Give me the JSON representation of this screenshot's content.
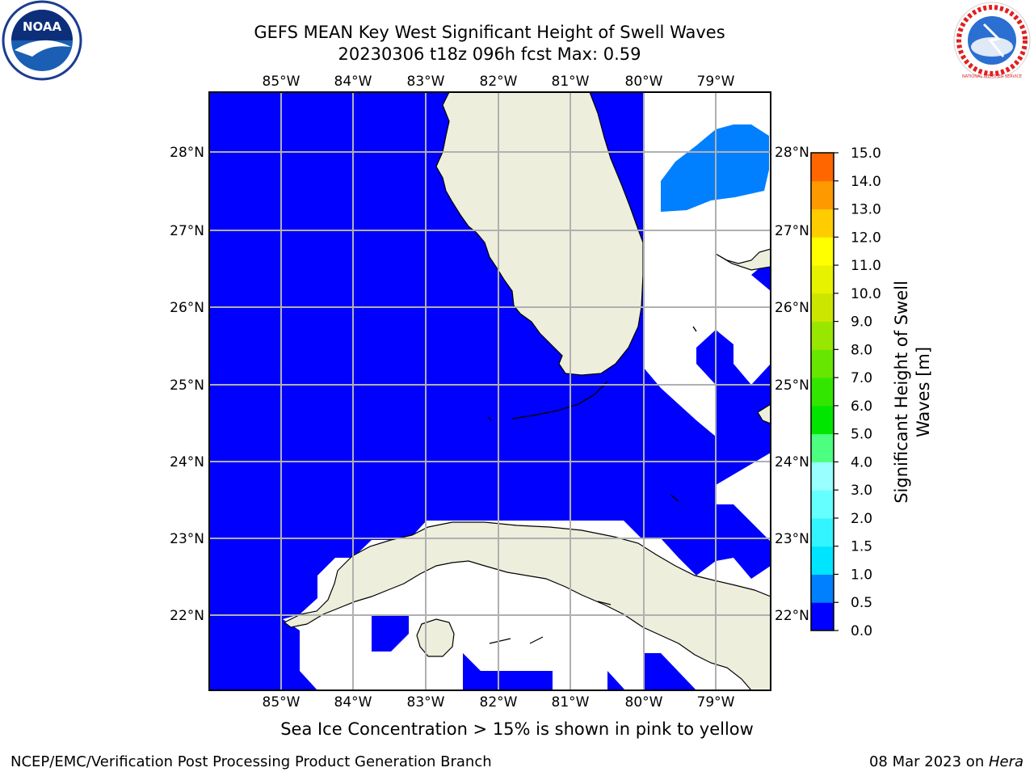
{
  "title_line1": "GEFS MEAN Key West Significant Height of Swell Waves",
  "title_line2": "20230306 t18z 096h fcst   Max: 0.59",
  "map": {
    "lon_labels": [
      "85°W",
      "84°W",
      "83°W",
      "82°W",
      "81°W",
      "80°W",
      "79°W"
    ],
    "lat_labels": [
      "28°N",
      "27°N",
      "26°N",
      "25°N",
      "24°N",
      "23°N",
      "22°N"
    ],
    "colors": {
      "land": "#eeeedd",
      "ocean_low": "#0000ff",
      "ocean_mid": "#0080ff",
      "grid": "#b0b0b0"
    }
  },
  "colorbar": {
    "title_line1": "Significant Height of Swell",
    "title_line2": "Waves [m]",
    "tick_labels": [
      "0.0",
      "0.5",
      "1.0",
      "1.5",
      "2.0",
      "3.0",
      "4.0",
      "5.0",
      "6.0",
      "7.0",
      "8.0",
      "9.0",
      "10.0",
      "11.0",
      "12.0",
      "13.0",
      "14.0",
      "15.0"
    ],
    "colors": [
      "#0000ff",
      "#0080ff",
      "#00e5ff",
      "#33f5ff",
      "#66ffff",
      "#99ffff",
      "#4dff80",
      "#00e600",
      "#33e600",
      "#66e600",
      "#99e600",
      "#cce600",
      "#e6f200",
      "#ffff00",
      "#ffcc00",
      "#ff9900",
      "#ff6600",
      "#ff3300",
      "#ff0000"
    ]
  },
  "note": "Sea Ice Concentration > 15% is shown in pink to yellow",
  "footer_left": "NCEP/EMC/Verification Post Processing Product Generation Branch",
  "footer_date": "08 Mar 2023 on ",
  "footer_host": "Hera",
  "logos": {
    "left_text": "NOAA",
    "right_text": "NATIONAL WEATHER SERVICE"
  }
}
